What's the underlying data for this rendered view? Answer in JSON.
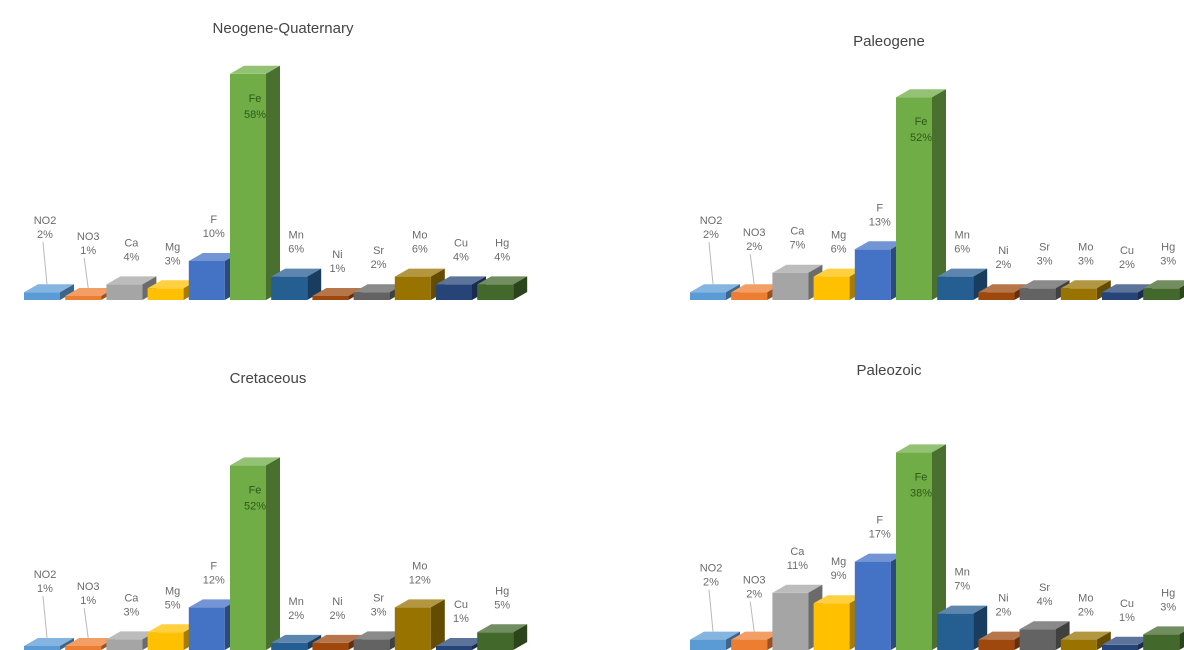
{
  "colors": {
    "NO2": "#5b9bd5",
    "NO3": "#ed7d31",
    "Ca": "#a5a5a5",
    "Mg": "#ffc000",
    "F": "#4472c4",
    "Fe": "#70ad47",
    "Mn": "#255e91",
    "Ni": "#9e480e",
    "Sr": "#636363",
    "Mo": "#997300",
    "Cu": "#264478",
    "Hg": "#43682b"
  },
  "chart_data": [
    {
      "type": "bar",
      "title": "Neogene-Quaternary",
      "categories": [
        "NO2",
        "NO3",
        "Ca",
        "Mg",
        "F",
        "Fe",
        "Mn",
        "Ni",
        "Sr",
        "Mo",
        "Cu",
        "Hg"
      ],
      "values": [
        2,
        1,
        4,
        3,
        10,
        58,
        6,
        1,
        2,
        6,
        4,
        4
      ],
      "labels": [
        "2%",
        "1%",
        "4%",
        "3%",
        "10%",
        "58%",
        "6%",
        "1%",
        "2%",
        "6%",
        "4%",
        "4%"
      ],
      "grid": false,
      "legend": "none"
    },
    {
      "type": "bar",
      "title": "Paleogene",
      "categories": [
        "NO2",
        "NO3",
        "Ca",
        "Mg",
        "F",
        "Fe",
        "Mn",
        "Ni",
        "Sr",
        "Mo",
        "Cu",
        "Hg"
      ],
      "values": [
        2,
        2,
        7,
        6,
        13,
        52,
        6,
        2,
        3,
        3,
        2,
        3
      ],
      "labels": [
        "2%",
        "2%",
        "7%",
        "6%",
        "13%",
        "52%",
        "6%",
        "2%",
        "3%",
        "3%",
        "2%",
        "3%"
      ],
      "grid": false,
      "legend": "none"
    },
    {
      "type": "bar",
      "title": "Cretaceous",
      "categories": [
        "NO2",
        "NO3",
        "Ca",
        "Mg",
        "F",
        "Fe",
        "Mn",
        "Ni",
        "Sr",
        "Mo",
        "Cu",
        "Hg"
      ],
      "values": [
        1,
        1,
        3,
        5,
        12,
        52,
        2,
        2,
        3,
        12,
        1,
        5
      ],
      "labels": [
        "1%",
        "1%",
        "3%",
        "5%",
        "12%",
        "52%",
        "2%",
        "2%",
        "3%",
        "12%",
        "1%",
        "5%"
      ],
      "grid": false,
      "legend": "none"
    },
    {
      "type": "bar",
      "title": "Paleozoic",
      "categories": [
        "NO2",
        "NO3",
        "Ca",
        "Mg",
        "F",
        "Fe",
        "Mn",
        "Ni",
        "Sr",
        "Mo",
        "Cu",
        "Hg"
      ],
      "values": [
        2,
        2,
        11,
        9,
        17,
        38,
        7,
        2,
        4,
        2,
        1,
        3
      ],
      "labels": [
        "2%",
        "2%",
        "11%",
        "9%",
        "17%",
        "38%",
        "7%",
        "2%",
        "4%",
        "2%",
        "1%",
        "3%"
      ],
      "grid": false,
      "legend": "none"
    }
  ]
}
